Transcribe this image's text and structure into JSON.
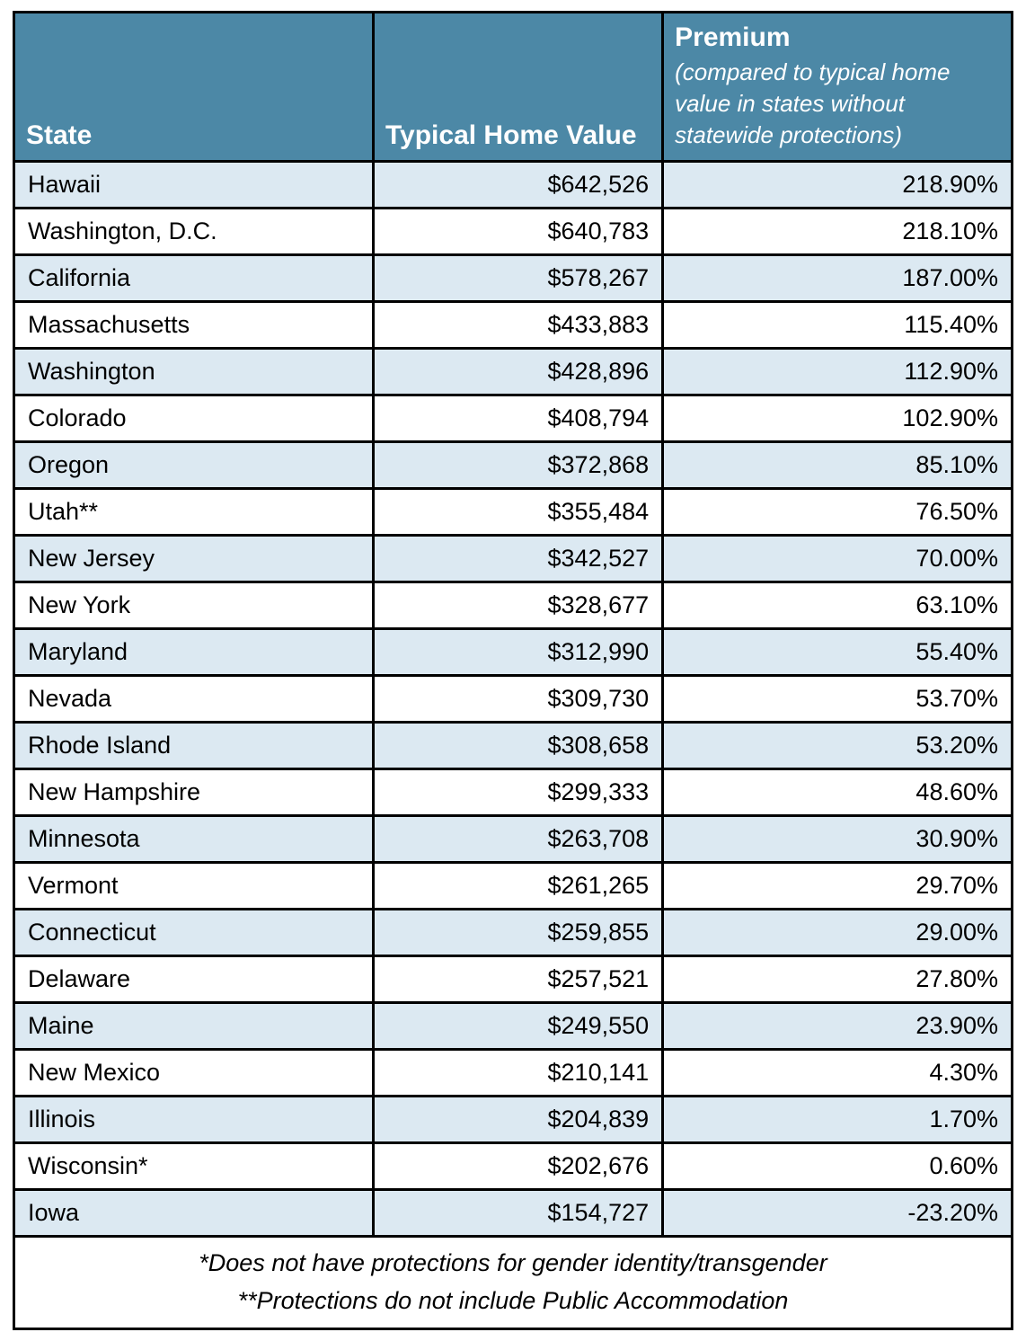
{
  "colors": {
    "header_bg": "#4C88A6",
    "row_alt_bg": "#DCE9F2",
    "row_bg": "#FFFFFF",
    "border": "#000000",
    "header_text": "#FFFFFF"
  },
  "header": {
    "state_label": "State",
    "value_label": "Typical Home Value",
    "premium_label": "Premium",
    "premium_note": "(compared to typical home value in states without statewide protections)"
  },
  "footnotes": [
    "*Does not have protections for gender identity/transgender",
    "**Protections do not include Public Accommodation"
  ],
  "chart_data": {
    "type": "table",
    "columns": [
      "State",
      "Typical Home Value",
      "Premium (compared to typical home value in states without statewide protections)"
    ],
    "rows": [
      [
        "Hawaii",
        "$642,526",
        "218.90%"
      ],
      [
        "Washington, D.C.",
        "$640,783",
        "218.10%"
      ],
      [
        "California",
        "$578,267",
        "187.00%"
      ],
      [
        "Massachusetts",
        "$433,883",
        "115.40%"
      ],
      [
        "Washington",
        "$428,896",
        "112.90%"
      ],
      [
        "Colorado",
        "$408,794",
        "102.90%"
      ],
      [
        "Oregon",
        "$372,868",
        "85.10%"
      ],
      [
        "Utah**",
        "$355,484",
        "76.50%"
      ],
      [
        "New Jersey",
        "$342,527",
        "70.00%"
      ],
      [
        "New York",
        "$328,677",
        "63.10%"
      ],
      [
        "Maryland",
        "$312,990",
        "55.40%"
      ],
      [
        "Nevada",
        "$309,730",
        "53.70%"
      ],
      [
        "Rhode Island",
        "$308,658",
        "53.20%"
      ],
      [
        "New Hampshire",
        "$299,333",
        "48.60%"
      ],
      [
        "Minnesota",
        "$263,708",
        "30.90%"
      ],
      [
        "Vermont",
        "$261,265",
        "29.70%"
      ],
      [
        "Connecticut",
        "$259,855",
        "29.00%"
      ],
      [
        "Delaware",
        "$257,521",
        "27.80%"
      ],
      [
        "Maine",
        "$249,550",
        "23.90%"
      ],
      [
        "New Mexico",
        "$210,141",
        "4.30%"
      ],
      [
        "Illinois",
        "$204,839",
        "1.70%"
      ],
      [
        "Wisconsin*",
        "$202,676",
        "0.60%"
      ],
      [
        "Iowa",
        "$154,727",
        "-23.20%"
      ]
    ]
  }
}
